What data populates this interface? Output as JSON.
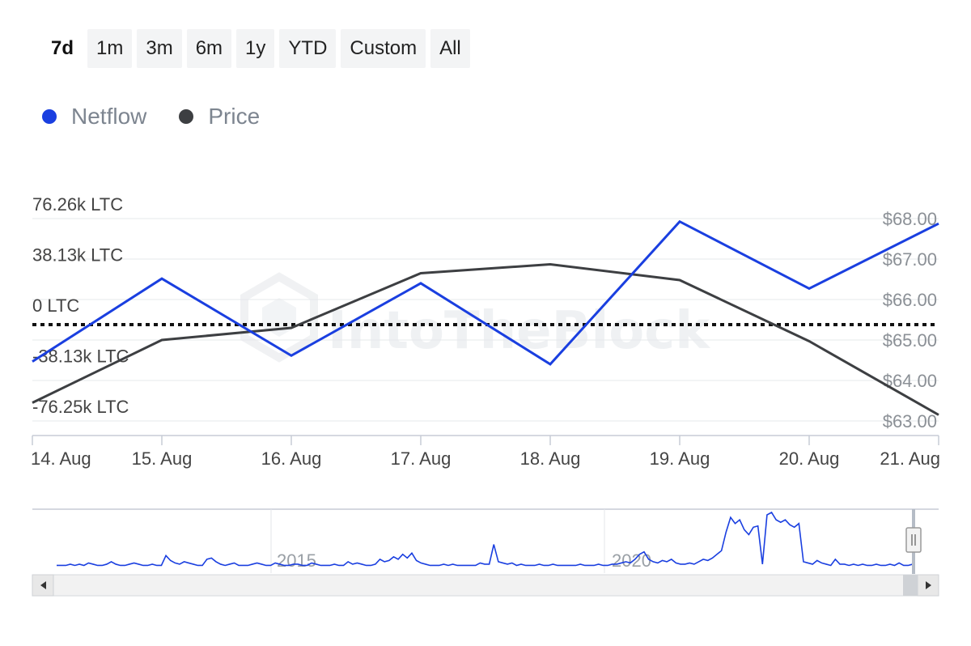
{
  "range_buttons": [
    "7d",
    "1m",
    "3m",
    "6m",
    "1y",
    "YTD",
    "Custom",
    "All"
  ],
  "active_range": "7d",
  "legend": [
    {
      "label": "Netflow",
      "color": "#1a3fe0"
    },
    {
      "label": "Price",
      "color": "#3d3f42"
    }
  ],
  "watermark": "IntoTheBlock",
  "chart_data": {
    "type": "line",
    "x": [
      "14. Aug",
      "15. Aug",
      "16. Aug",
      "17. Aug",
      "18. Aug",
      "19. Aug",
      "20. Aug",
      "21. Aug"
    ],
    "left_axis": {
      "ticks": [
        76260,
        38130,
        0,
        -38130,
        -76250
      ],
      "tick_labels": [
        "76.26k LTC",
        "38.13k LTC",
        "0 LTC",
        "-38.13k LTC",
        "-76.25k LTC"
      ],
      "range": [
        -76250,
        76260
      ]
    },
    "right_axis": {
      "ticks": [
        68,
        67,
        66,
        65,
        64,
        63
      ],
      "tick_labels": [
        "$68.00",
        "$67.00",
        "$66.00",
        "$65.00",
        "$64.00",
        "$63.00"
      ],
      "range": [
        63,
        68
      ]
    },
    "series": [
      {
        "name": "Netflow",
        "axis": "left",
        "color": "#1a3fe0",
        "values": [
          -31500,
          31000,
          -27000,
          27500,
          -33500,
          74000,
          23500,
          72500
        ]
      },
      {
        "name": "Price",
        "axis": "right",
        "color": "#3d3f42",
        "values": [
          63.45,
          65.0,
          65.3,
          66.65,
          66.87,
          66.48,
          64.97,
          63.15
        ]
      }
    ],
    "zero_reference_line": true,
    "grid": true,
    "legend_position": "top-left"
  },
  "navigator": {
    "labels": [
      "2015",
      "2020"
    ],
    "series": [
      1,
      1,
      1,
      2,
      1,
      2,
      1,
      3,
      2,
      1,
      1,
      2,
      4,
      2,
      1,
      1,
      2,
      3,
      2,
      1,
      1,
      2,
      1,
      1,
      9,
      5,
      3,
      2,
      4,
      3,
      2,
      1,
      1,
      6,
      7,
      4,
      2,
      1,
      2,
      3,
      1,
      1,
      1,
      2,
      3,
      2,
      1,
      1,
      3,
      2,
      1,
      1,
      2,
      2,
      1,
      1,
      3,
      2,
      1,
      1,
      1,
      2,
      1,
      1,
      4,
      2,
      3,
      2,
      1,
      1,
      2,
      6,
      4,
      5,
      8,
      6,
      10,
      7,
      11,
      5,
      3,
      2,
      1,
      1,
      1,
      2,
      1,
      2,
      1,
      1,
      1,
      1,
      1,
      3,
      2,
      2,
      18,
      4,
      3,
      2,
      3,
      1,
      2,
      1,
      1,
      1,
      2,
      1,
      1,
      2,
      1,
      1,
      1,
      1,
      1,
      2,
      1,
      1,
      1,
      2,
      1,
      1,
      2,
      2,
      3,
      4,
      3,
      6,
      10,
      12,
      6,
      4,
      3,
      5,
      4,
      6,
      3,
      2,
      2,
      3,
      2,
      4,
      6,
      5,
      7,
      10,
      13,
      28,
      40,
      35,
      38,
      30,
      26,
      32,
      33,
      2,
      42,
      44,
      38,
      36,
      38,
      34,
      32,
      35,
      4,
      3,
      2,
      5,
      3,
      2,
      1,
      6,
      2,
      2,
      1,
      2,
      1,
      2,
      1,
      1,
      2,
      1,
      1,
      2,
      1,
      3,
      1,
      1,
      2
    ]
  }
}
